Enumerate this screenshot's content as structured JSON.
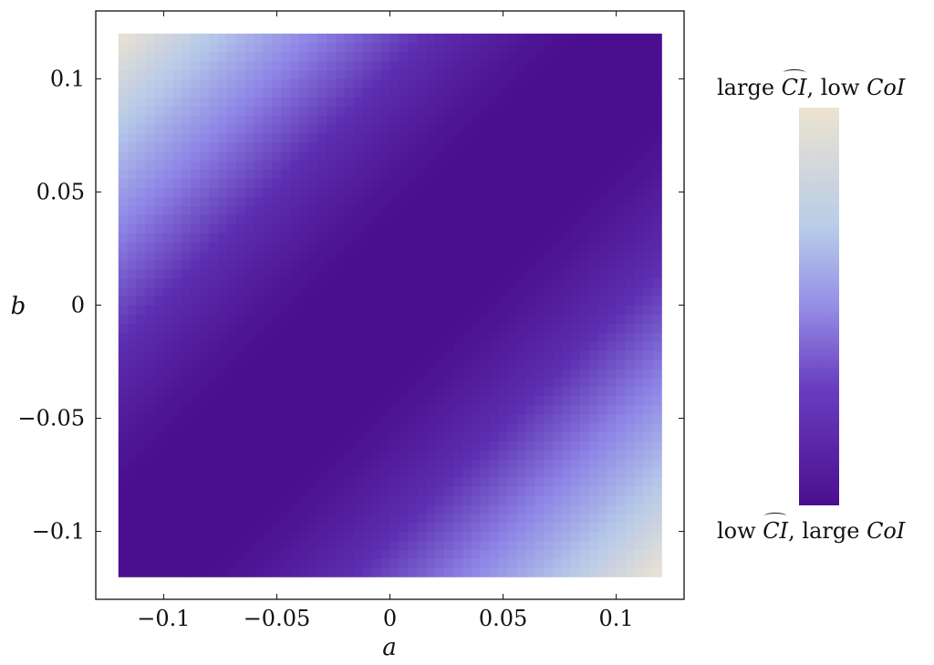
{
  "chart_data": {
    "type": "heatmap",
    "title": "",
    "xlabel": "a",
    "ylabel": "b",
    "xlim": [
      -0.13,
      0.13
    ],
    "ylim": [
      -0.13,
      0.13
    ],
    "data_extent": {
      "x": [
        -0.12,
        0.12
      ],
      "y": [
        -0.12,
        0.12
      ]
    },
    "xticks": [
      -0.1,
      -0.05,
      0,
      0.05,
      0.1
    ],
    "xtick_labels": [
      "−0.1",
      "−0.05",
      "0",
      "0.05",
      "0.1"
    ],
    "yticks": [
      -0.1,
      -0.05,
      0,
      0.05,
      0.1
    ],
    "ytick_labels": [
      "−0.1",
      "−0.05",
      "0",
      "0.05",
      "0.1"
    ],
    "colormap": [
      "#4a0f8f",
      "#5d2fb0",
      "#8d85e6",
      "#b6c9e8",
      "#ece3d2"
    ],
    "colorbar": {
      "top_label": {
        "prefix": "large ",
        "ci": "CI",
        "middle": ", low ",
        "coi": "CoI"
      },
      "bottom_label": {
        "prefix": "low ",
        "ci": "CI",
        "middle": ", large ",
        "coi": "CoI"
      }
    },
    "description_of_field": "value high at corners (a,b)=(-0.12,0.12) and (0.12,-0.12), low along the diagonal b≈a"
  }
}
